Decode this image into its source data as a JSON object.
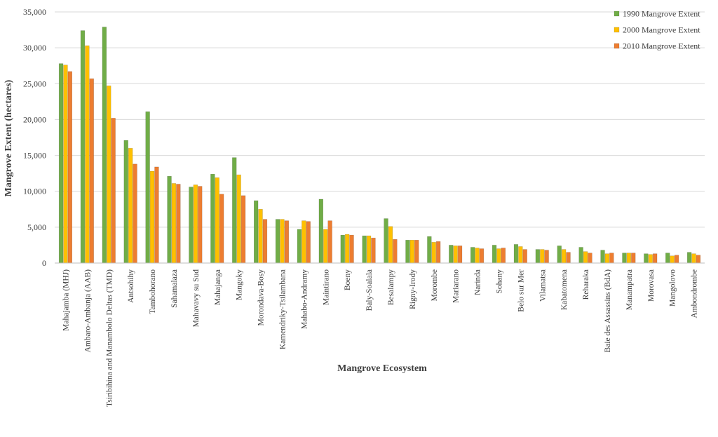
{
  "chart_data": {
    "type": "bar",
    "title": "",
    "xlabel": "Mangrove Ecosystem",
    "ylabel": "Mangrove Extent (hectares)",
    "ylim": [
      0,
      35000
    ],
    "yticks": [
      0,
      5000,
      10000,
      15000,
      20000,
      25000,
      30000,
      35000
    ],
    "ytick_labels": [
      "0",
      "5,000",
      "10,000",
      "15,000",
      "20,000",
      "25,000",
      "30,000",
      "35,000"
    ],
    "grid": true,
    "legend_position": "top-right",
    "categories": [
      "Mahajamba (MHJ)",
      "Ambaro-Ambanja (AAB)",
      "Tsiribihina and Manambolo Deltas (TMD)",
      "Antsohihy",
      "Tambohorano",
      "Sahamalaza",
      "Mahavavy su Sud",
      "Mahajanga",
      "Mangoky",
      "Morondava-Bosy",
      "Kamendriky-Tsilambana",
      "Mahabo-Andramy",
      "Maintirano",
      "Boeny",
      "Baly-Soalala",
      "Besalampy",
      "Rigny-Irody",
      "Morombe",
      "Mariarano",
      "Narinda",
      "Sohany",
      "Belo sur Mer",
      "Vilamatsa",
      "Kabatomena",
      "Reharaka",
      "Baie des Assassins (BdA)",
      "Manampatra",
      "Morovasa",
      "Mangolovo",
      "Ambondrombe"
    ],
    "series": [
      {
        "name": "1990 Mangrove Extent",
        "color": "#70AD47",
        "values": [
          27800,
          32400,
          32900,
          17100,
          21100,
          12100,
          10600,
          12400,
          14700,
          8700,
          6100,
          4700,
          8900,
          3900,
          3800,
          6200,
          3200,
          3700,
          2500,
          2200,
          2500,
          2600,
          1900,
          2400,
          2200,
          1800,
          1400,
          1300,
          1400,
          1500
        ]
      },
      {
        "name": "2000 Mangrove Extent",
        "color": "#FFC000",
        "values": [
          27600,
          30300,
          24700,
          16000,
          12800,
          11100,
          10900,
          11900,
          12300,
          7500,
          6100,
          5900,
          4700,
          4000,
          3800,
          5100,
          3200,
          2900,
          2400,
          2100,
          2000,
          2300,
          1900,
          1900,
          1600,
          1300,
          1400,
          1200,
          1000,
          1300
        ]
      },
      {
        "name": "2010 Mangrove Extent",
        "color": "#ED7D31",
        "values": [
          26700,
          25700,
          20200,
          13800,
          13400,
          11000,
          10700,
          9600,
          9400,
          6100,
          5900,
          5800,
          5900,
          3900,
          3500,
          3300,
          3200,
          3000,
          2400,
          2000,
          2100,
          1900,
          1800,
          1500,
          1400,
          1400,
          1400,
          1300,
          1100,
          1100
        ]
      }
    ]
  }
}
